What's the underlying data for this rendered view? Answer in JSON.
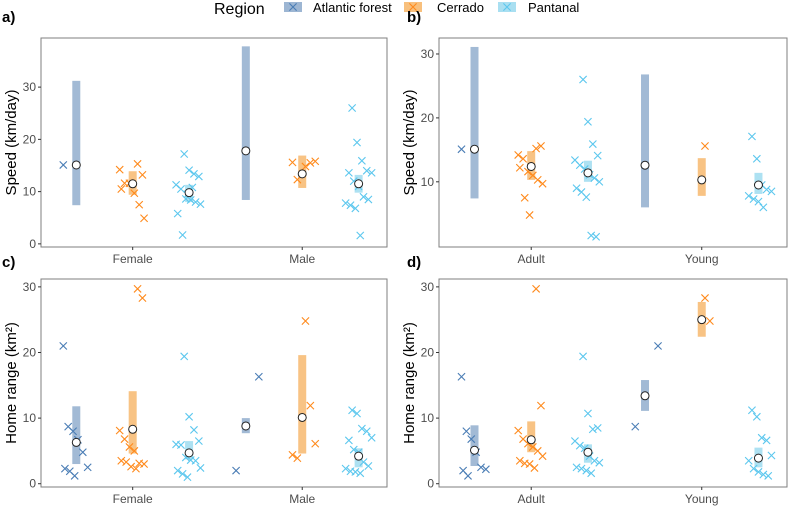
{
  "chart_data": {
    "legend": {
      "title": "Region",
      "placement": "top",
      "entries": [
        {
          "name": "Atlantic forest",
          "bar_color": "#9db6d3",
          "point_color": "#4a7db5"
        },
        {
          "name": "Cerrado",
          "bar_color": "#f8c07d",
          "point_color": "#ff8a1c"
        },
        {
          "name": "Pantanal",
          "bar_color": "#a9dff1",
          "point_color": "#5cc7ee"
        }
      ]
    },
    "panels": [
      {
        "label": "a)",
        "type": "scatter",
        "ylabel": "Speed (km/day)",
        "ylim": [
          -0.6,
          39.4
        ],
        "yticks": [
          "0",
          "10",
          "20",
          "30"
        ],
        "categories": [
          "Female",
          "Male"
        ],
        "groups": [
          {
            "category": 0,
            "region": 0,
            "mean": 15.1,
            "range": [
              7.4,
              31.2
            ],
            "points": [
              15.1
            ]
          },
          {
            "category": 0,
            "region": 1,
            "mean": 11.5,
            "range": [
              9.4,
              13.9
            ],
            "points": [
              15.3,
              13.2,
              14.2,
              11.6,
              11.6,
              9.7,
              7.5,
              4.9,
              10.5
            ]
          },
          {
            "category": 0,
            "region": 2,
            "mean": 9.8,
            "range": [
              8.0,
              11.3
            ],
            "points": [
              17.2,
              14.1,
              13.4,
              12.9,
              11.3,
              10.5,
              8.6,
              8.4,
              8.0,
              7.6,
              5.8,
              1.7,
              9.5,
              10.8
            ]
          },
          {
            "category": 1,
            "region": 0,
            "mean": 17.8,
            "range": [
              8.4,
              37.8
            ],
            "points": []
          },
          {
            "category": 1,
            "region": 1,
            "mean": 13.4,
            "range": [
              10.7,
              16.9
            ],
            "points": [
              14.8,
              15.5,
              15.8,
              15.6,
              12.3
            ]
          },
          {
            "category": 1,
            "region": 2,
            "mean": 11.5,
            "range": [
              9.8,
              13.2
            ],
            "points": [
              26.0,
              19.4,
              15.9,
              14.0,
              13.6,
              13.6,
              12.0,
              11.0,
              9.0,
              8.5,
              7.8,
              7.4,
              6.8,
              1.6
            ]
          }
        ]
      },
      {
        "label": "b)",
        "type": "scatter",
        "ylabel": "Speed (km/day)",
        "ylim": [
          -0.2,
          32.5
        ],
        "yticks": [
          "10",
          "20",
          "30"
        ],
        "categories": [
          "Adult",
          "Young"
        ],
        "groups": [
          {
            "category": 0,
            "region": 0,
            "mean": 15.1,
            "range": [
              7.4,
              31.1
            ],
            "points": [
              15.1
            ]
          },
          {
            "category": 0,
            "region": 1,
            "mean": 12.4,
            "range": [
              10.3,
              14.8
            ],
            "points": [
              15.2,
              15.6,
              14.2,
              13.6,
              11.6,
              11.0,
              10.3,
              9.7,
              12.2,
              7.5,
              4.8
            ]
          },
          {
            "category": 0,
            "region": 2,
            "mean": 11.4,
            "range": [
              10.0,
              13.3
            ],
            "points": [
              26.0,
              19.4,
              15.9,
              14.1,
              13.4,
              12.6,
              12.0,
              11.1,
              10.6,
              10.0,
              9.0,
              8.4,
              7.6,
              1.6,
              1.4
            ]
          },
          {
            "category": 1,
            "region": 0,
            "mean": 12.6,
            "range": [
              6.0,
              26.8
            ],
            "points": []
          },
          {
            "category": 1,
            "region": 1,
            "mean": 10.3,
            "range": [
              7.8,
              13.7
            ],
            "points": [
              15.6
            ]
          },
          {
            "category": 1,
            "region": 2,
            "mean": 9.5,
            "range": [
              8.1,
              11.4
            ],
            "points": [
              17.1,
              13.6,
              9.5,
              8.8,
              8.5,
              7.8,
              7.3,
              6.9,
              6.0
            ]
          }
        ]
      },
      {
        "label": "c)",
        "type": "scatter",
        "ylabel": "Home range (km²)",
        "ylim": [
          -0.5,
          31.2
        ],
        "yticks": [
          "0",
          "10",
          "20",
          "30"
        ],
        "categories": [
          "Female",
          "Male"
        ],
        "groups": [
          {
            "category": 0,
            "region": 0,
            "mean": 6.3,
            "range": [
              3.0,
              11.8
            ],
            "points": [
              21.0,
              8.7,
              8.0,
              6.7,
              4.8,
              2.5,
              2.3,
              1.9,
              1.2
            ]
          },
          {
            "category": 0,
            "region": 1,
            "mean": 8.3,
            "range": [
              4.6,
              14.1
            ],
            "points": [
              29.7,
              28.3,
              8.1,
              6.8,
              5.6,
              5.0,
              3.1,
              3.0,
              3.5,
              3.3,
              2.6,
              2.3
            ]
          },
          {
            "category": 0,
            "region": 2,
            "mean": 4.7,
            "range": [
              3.7,
              6.5
            ],
            "points": [
              19.4,
              10.2,
              8.2,
              6.5,
              6.0,
              5.9,
              4.0,
              3.6,
              3.5,
              2.4,
              2.0,
              1.5,
              1.0
            ]
          },
          {
            "category": 1,
            "region": 0,
            "mean": 8.8,
            "range": [
              7.7,
              10.0
            ],
            "points": [
              16.3,
              2.0
            ]
          },
          {
            "category": 1,
            "region": 1,
            "mean": 10.1,
            "range": [
              4.6,
              19.6
            ],
            "points": [
              24.8,
              11.9,
              6.1,
              4.4,
              3.9
            ]
          },
          {
            "category": 1,
            "region": 2,
            "mean": 4.2,
            "range": [
              2.5,
              5.4
            ],
            "points": [
              11.2,
              10.7,
              8.4,
              8.0,
              7.0,
              6.6,
              5.2,
              4.8,
              3.3,
              2.7,
              2.3,
              1.9,
              1.8,
              1.6
            ]
          }
        ]
      },
      {
        "label": "d)",
        "type": "scatter",
        "ylabel": "Home range (km²)",
        "ylim": [
          -0.5,
          31.2
        ],
        "yticks": [
          "0",
          "10",
          "20",
          "30"
        ],
        "categories": [
          "Adult",
          "Young"
        ],
        "groups": [
          {
            "category": 0,
            "region": 0,
            "mean": 5.1,
            "range": [
              2.7,
              8.9
            ],
            "points": [
              16.3,
              8.0,
              6.8,
              4.8,
              2.5,
              2.2,
              2.0,
              1.2
            ]
          },
          {
            "category": 0,
            "region": 1,
            "mean": 6.7,
            "range": [
              4.8,
              9.5
            ],
            "points": [
              29.7,
              11.9,
              8.1,
              6.8,
              6.1,
              5.6,
              5.0,
              4.2,
              3.5,
              3.1,
              3.0,
              2.4
            ]
          },
          {
            "category": 0,
            "region": 2,
            "mean": 4.8,
            "range": [
              3.2,
              6.0
            ],
            "points": [
              19.4,
              10.7,
              8.3,
              8.5,
              6.5,
              5.8,
              5.4,
              4.2,
              3.5,
              3.2,
              2.5,
              2.3,
              2.0,
              1.6
            ]
          },
          {
            "category": 1,
            "region": 0,
            "mean": 13.4,
            "range": [
              11.1,
              15.8
            ],
            "points": [
              21.0,
              8.7
            ]
          },
          {
            "category": 1,
            "region": 1,
            "mean": 25.0,
            "range": [
              22.4,
              27.7
            ],
            "points": [
              28.3,
              24.8
            ]
          },
          {
            "category": 1,
            "region": 2,
            "mean": 3.9,
            "range": [
              2.5,
              5.5
            ],
            "points": [
              11.2,
              10.2,
              7.0,
              6.6,
              4.3,
              3.5,
              2.3,
              1.8,
              1.4,
              1.2
            ]
          }
        ]
      }
    ]
  }
}
